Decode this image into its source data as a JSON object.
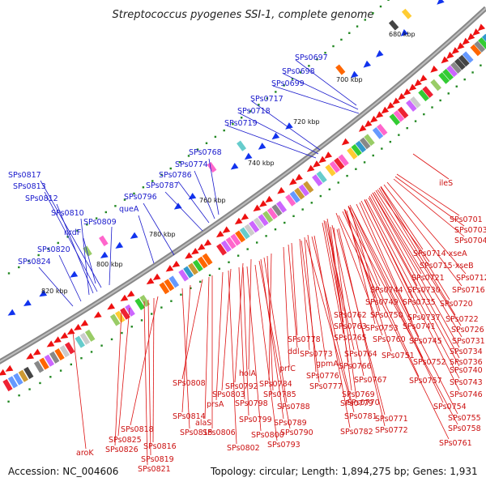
{
  "title": "Streptococcus pyogenes SSI-1, complete genome",
  "footer": {
    "accession": "Accession: NC_004606",
    "topology": "Topology: circular; Length: 1,894,275 bp; Genes: 1,931"
  },
  "ticks": [
    "680 kbp",
    "700 kbp",
    "720 kbp",
    "740 kbp",
    "760 kbp",
    "780 kbp",
    "800 kbp",
    "820 kbp"
  ],
  "blue_genes": [
    "SPs0697",
    "SPs0698",
    "SPs0699",
    "SPs0717",
    "SPs0718",
    "SPs0719",
    "SPs0768",
    "SPs0774",
    "SPs0786",
    "SPs0787",
    "SPs0796",
    "queA",
    "SPs0817",
    "SPs0813",
    "SPs0812",
    "SPs0810",
    "nrdF",
    "SPs0809",
    "SPs0820",
    "SPs0824"
  ],
  "red_genes": [
    "ileS",
    "SPs0701",
    "SPs0703",
    "SPs0704",
    "SPs0714",
    "xseA",
    "SPs0715",
    "xseB",
    "SPs0721",
    "SPs0712",
    "SPs0744",
    "SPs0730",
    "SPs0716",
    "SPs0749",
    "SPs0735",
    "SPs0720",
    "SPs0762",
    "SPs0750",
    "SPs0737",
    "SPs0722",
    "SPs0763",
    "SPs0753",
    "SPs0741",
    "SPs0726",
    "SPs0778",
    "SPs0765",
    "SPs0760",
    "SPs0745",
    "SPs0731",
    "ddl",
    "SPs0773",
    "SPs0764",
    "SPs0751",
    "SPs0734",
    "prfC",
    "gpmA",
    "SPs0766",
    "SPs0752",
    "SPs0736",
    "SPs0776",
    "SPs0767",
    "SPs0757",
    "SPs0740",
    "SPs0784",
    "SPs0777",
    "SPs0743",
    "holA",
    "SPs0785",
    "SPs0769",
    "SPs0746",
    "SPs0808",
    "SPs0792",
    "SPs0779",
    "SPs0770",
    "SPs0754",
    "SPs0803",
    "SPs0788",
    "SPs0781",
    "SPs0755",
    "prsA",
    "SPs0798",
    "SPs0771",
    "SPs0758",
    "SPs0814",
    "SPs0789",
    "SPs0772",
    "SPs0761",
    "alaS",
    "SPs0799",
    "SPs0790",
    "SPs0782",
    "SPs0815",
    "SPs0806",
    "SPs0800",
    "SPs0818",
    "SPs0793",
    "SPs0825",
    "SPs0802",
    "SPs0816",
    "SPs0826",
    "SPs0819",
    "aroK",
    "SPs0821"
  ],
  "colors": {
    "blue": "#1a1acc",
    "red": "#cc1111",
    "ring": "#777777",
    "feature_forward": "#ee1111",
    "feature_reverse": "#1133ee",
    "gc_dots": "#228822"
  }
}
